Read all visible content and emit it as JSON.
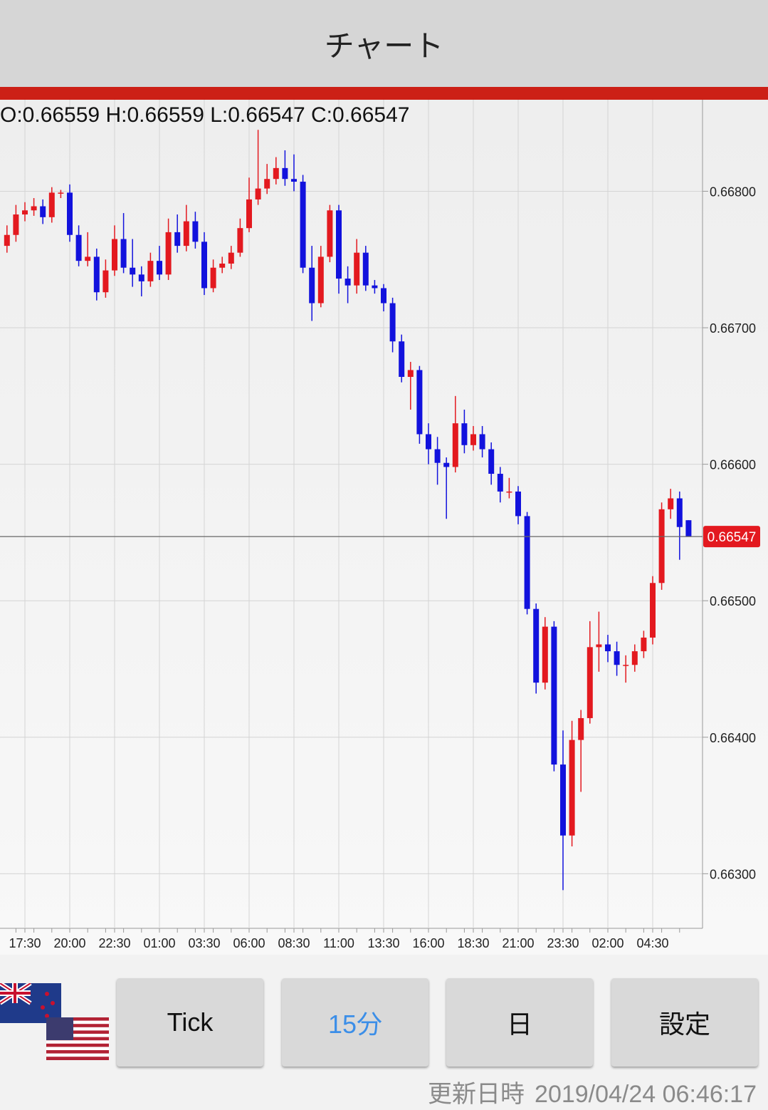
{
  "header": {
    "title": "チャート"
  },
  "chart_data": {
    "type": "candlestick",
    "ohlc_label": "O:0.66559 H:0.66559 L:0.66547 C:0.66547",
    "last_price": 0.66547,
    "up_color": "#e3191f",
    "down_color": "#1212dd",
    "grid": true,
    "ylim": [
      0.6626,
      0.66866
    ],
    "yticks": [
      {
        "value": 0.663,
        "label": "0.66300"
      },
      {
        "value": 0.664,
        "label": "0.66400"
      },
      {
        "value": 0.665,
        "label": "0.66500"
      },
      {
        "value": 0.666,
        "label": "0.66600"
      },
      {
        "value": 0.667,
        "label": "0.66700"
      },
      {
        "value": 0.668,
        "label": "0.66800"
      }
    ],
    "categories": [
      null,
      null,
      "17:30",
      null,
      null,
      null,
      null,
      "20:00",
      null,
      null,
      null,
      null,
      "22:30",
      null,
      null,
      null,
      null,
      "01:00",
      null,
      null,
      null,
      null,
      "03:30",
      null,
      null,
      null,
      null,
      "06:00",
      null,
      null,
      null,
      null,
      "08:30",
      null,
      null,
      null,
      null,
      "11:00",
      null,
      null,
      null,
      null,
      "13:30",
      null,
      null,
      null,
      null,
      "16:00",
      null,
      null,
      null,
      null,
      "18:30",
      null,
      null,
      null,
      null,
      "21:00",
      null,
      null,
      null,
      null,
      "23:30",
      null,
      null,
      null,
      null,
      "02:00",
      null,
      null,
      null,
      null,
      "04:30",
      null,
      null,
      null,
      null
    ],
    "open": [
      0.6676,
      0.66768,
      0.66783,
      0.66786,
      0.66789,
      0.66781,
      0.66799,
      0.66799,
      0.66768,
      0.66749,
      0.66752,
      0.66726,
      0.66742,
      0.66765,
      0.66744,
      0.66739,
      0.66734,
      0.66749,
      0.66739,
      0.6677,
      0.6676,
      0.66778,
      0.66763,
      0.66729,
      0.66744,
      0.66747,
      0.66755,
      0.66773,
      0.66794,
      0.66802,
      0.66809,
      0.66817,
      0.66809,
      0.66807,
      0.66744,
      0.66718,
      0.66752,
      0.66786,
      0.66736,
      0.66731,
      0.66755,
      0.66731,
      0.66729,
      0.66718,
      0.6669,
      0.66664,
      0.66669,
      0.66622,
      0.66611,
      0.66601,
      0.66598,
      0.6663,
      0.66614,
      0.66622,
      0.66611,
      0.66593,
      0.6658,
      0.6658,
      0.66562,
      0.66494,
      0.6644,
      0.66481,
      0.6638,
      0.66328,
      0.66398,
      0.66414,
      0.66466,
      0.66468,
      0.66463,
      0.66453,
      0.66453,
      0.66463,
      0.66473,
      0.66513,
      0.66567,
      0.66575,
      0.66559
    ],
    "high": [
      0.66775,
      0.6679,
      0.66792,
      0.66795,
      0.66794,
      0.66803,
      0.66801,
      0.66805,
      0.66775,
      0.6677,
      0.66758,
      0.6675,
      0.66775,
      0.66784,
      0.66765,
      0.66745,
      0.66755,
      0.6676,
      0.6678,
      0.66783,
      0.6679,
      0.66785,
      0.6677,
      0.6675,
      0.66752,
      0.6676,
      0.6678,
      0.6681,
      0.66845,
      0.6682,
      0.66825,
      0.6683,
      0.66827,
      0.66812,
      0.6676,
      0.6676,
      0.6679,
      0.6679,
      0.66745,
      0.66765,
      0.6676,
      0.66735,
      0.66732,
      0.66722,
      0.66695,
      0.66675,
      0.66672,
      0.6663,
      0.6662,
      0.66605,
      0.6665,
      0.6664,
      0.66628,
      0.66628,
      0.66616,
      0.66598,
      0.6659,
      0.66584,
      0.66565,
      0.66498,
      0.66488,
      0.66485,
      0.66405,
      0.66412,
      0.6642,
      0.66485,
      0.66492,
      0.66475,
      0.6647,
      0.6646,
      0.66468,
      0.66478,
      0.66518,
      0.66572,
      0.66582,
      0.6658,
      0.66559
    ],
    "low": [
      0.66755,
      0.66763,
      0.66778,
      0.66782,
      0.66776,
      0.66777,
      0.66795,
      0.66763,
      0.66745,
      0.66745,
      0.6672,
      0.66722,
      0.66738,
      0.6674,
      0.6673,
      0.66723,
      0.6673,
      0.66735,
      0.66735,
      0.66755,
      0.66756,
      0.66758,
      0.66724,
      0.66726,
      0.6674,
      0.66743,
      0.66752,
      0.6677,
      0.6679,
      0.66798,
      0.66805,
      0.66804,
      0.668,
      0.6674,
      0.66705,
      0.66715,
      0.66748,
      0.66725,
      0.66718,
      0.66725,
      0.66727,
      0.66725,
      0.66712,
      0.66682,
      0.6666,
      0.6664,
      0.66615,
      0.666,
      0.66585,
      0.6656,
      0.66594,
      0.66608,
      0.6661,
      0.66605,
      0.66585,
      0.66572,
      0.66575,
      0.66556,
      0.6649,
      0.66432,
      0.66435,
      0.66375,
      0.66288,
      0.6632,
      0.6636,
      0.6641,
      0.66448,
      0.66455,
      0.66445,
      0.6644,
      0.66448,
      0.66458,
      0.66468,
      0.66508,
      0.6656,
      0.6653,
      0.66547
    ],
    "close": [
      0.66768,
      0.66783,
      0.66786,
      0.66789,
      0.66781,
      0.66799,
      0.66799,
      0.66768,
      0.66749,
      0.66752,
      0.66726,
      0.66742,
      0.66765,
      0.66744,
      0.66739,
      0.66734,
      0.66749,
      0.66739,
      0.6677,
      0.6676,
      0.66778,
      0.66763,
      0.66729,
      0.66744,
      0.66747,
      0.66755,
      0.66773,
      0.66794,
      0.66802,
      0.66809,
      0.66817,
      0.66809,
      0.66807,
      0.66744,
      0.66718,
      0.66752,
      0.66786,
      0.66736,
      0.66731,
      0.66755,
      0.66731,
      0.66729,
      0.66718,
      0.6669,
      0.66664,
      0.66669,
      0.66622,
      0.66611,
      0.66601,
      0.66598,
      0.6663,
      0.66614,
      0.66622,
      0.66611,
      0.66593,
      0.6658,
      0.6658,
      0.66562,
      0.66494,
      0.6644,
      0.66481,
      0.6638,
      0.66328,
      0.66398,
      0.66414,
      0.66466,
      0.66468,
      0.66463,
      0.66453,
      0.66453,
      0.66463,
      0.66473,
      0.66513,
      0.66567,
      0.66575,
      0.66554,
      0.66547
    ]
  },
  "buttons": [
    "Tick",
    "15分",
    "日",
    "設定"
  ],
  "footer": {
    "label": "更新日時",
    "timestamp": "2019/04/24 06:46:17"
  }
}
